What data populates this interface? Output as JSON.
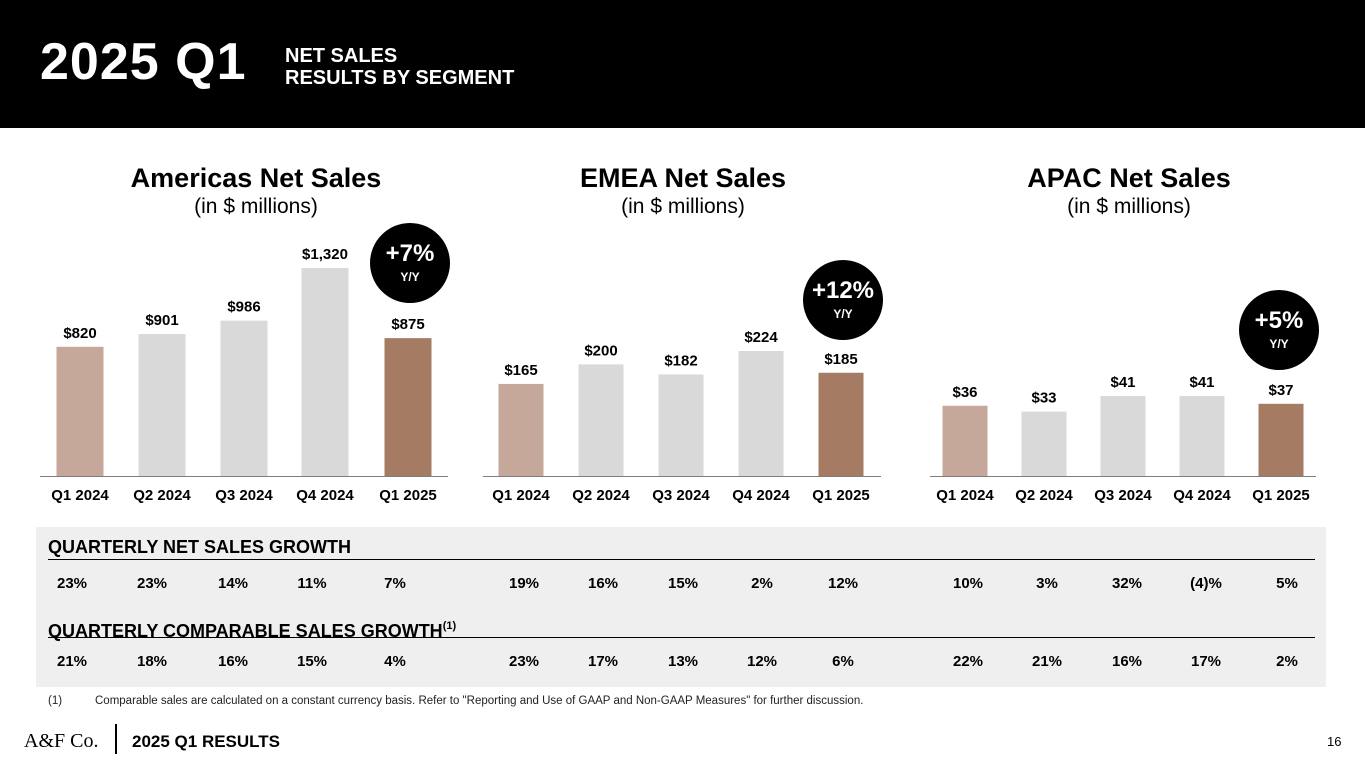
{
  "header": {
    "year_quarter": "2025 Q1",
    "subtitle_line1": "NET SALES",
    "subtitle_line2": "RESULTS BY SEGMENT"
  },
  "colors": {
    "q1_2024": "#c6a89b",
    "prior_quarters": "#d9d9d9",
    "q1_2025": "#a57c63",
    "table_bg": "#efefef",
    "header_bg": "#000000"
  },
  "chart_data": [
    {
      "type": "bar",
      "title": "Americas Net Sales",
      "subtitle": "(in $ millions)",
      "categories": [
        "Q1 2024",
        "Q2 2024",
        "Q3 2024",
        "Q4 2024",
        "Q1 2025"
      ],
      "values": [
        820,
        901,
        986,
        1320,
        875
      ],
      "value_labels": [
        "$820",
        "$901",
        "$986",
        "$1,320",
        "$875"
      ],
      "ylim": [
        0,
        1320
      ],
      "badge": {
        "value": "+7%",
        "label": "Y/Y"
      }
    },
    {
      "type": "bar",
      "title": "EMEA Net Sales",
      "subtitle": "(in $ millions)",
      "categories": [
        "Q1 2024",
        "Q2 2024",
        "Q3 2024",
        "Q4 2024",
        "Q1 2025"
      ],
      "values": [
        165,
        200,
        182,
        224,
        185
      ],
      "value_labels": [
        "$165",
        "$200",
        "$182",
        "$224",
        "$185"
      ],
      "ylim": [
        0,
        224
      ],
      "badge": {
        "value": "+12%",
        "label": "Y/Y"
      }
    },
    {
      "type": "bar",
      "title": "APAC Net Sales",
      "subtitle": "(in $ millions)",
      "categories": [
        "Q1 2024",
        "Q2 2024",
        "Q3 2024",
        "Q4 2024",
        "Q1 2025"
      ],
      "values": [
        36,
        33,
        41,
        41,
        37
      ],
      "value_labels": [
        "$36",
        "$33",
        "$41",
        "$41",
        "$37"
      ],
      "ylim": [
        0,
        41
      ],
      "badge": {
        "value": "+5%",
        "label": "Y/Y"
      }
    }
  ],
  "table": {
    "net_sales_growth": {
      "title": "QUARTERLY NET SALES GROWTH",
      "americas": [
        "23%",
        "23%",
        "14%",
        "11%",
        "7%"
      ],
      "emea": [
        "19%",
        "16%",
        "15%",
        "2%",
        "12%"
      ],
      "apac": [
        "10%",
        "3%",
        "32%",
        "(4)%",
        "5%"
      ]
    },
    "comparable_sales_growth": {
      "title": "QUARTERLY COMPARABLE SALES GROWTH",
      "footnote_marker": "(1)",
      "americas": [
        "21%",
        "18%",
        "16%",
        "15%",
        "4%"
      ],
      "emea": [
        "23%",
        "17%",
        "13%",
        "12%",
        "6%"
      ],
      "apac": [
        "22%",
        "21%",
        "16%",
        "17%",
        "2%"
      ]
    }
  },
  "footnote": {
    "number": "(1)",
    "text": "Comparable sales are calculated on a constant currency basis. Refer to \"Reporting and Use of GAAP and Non-GAAP Measures\" for further discussion."
  },
  "footer": {
    "logo": "A&F Co.",
    "title": "2025 Q1 RESULTS",
    "page_number": "16"
  }
}
